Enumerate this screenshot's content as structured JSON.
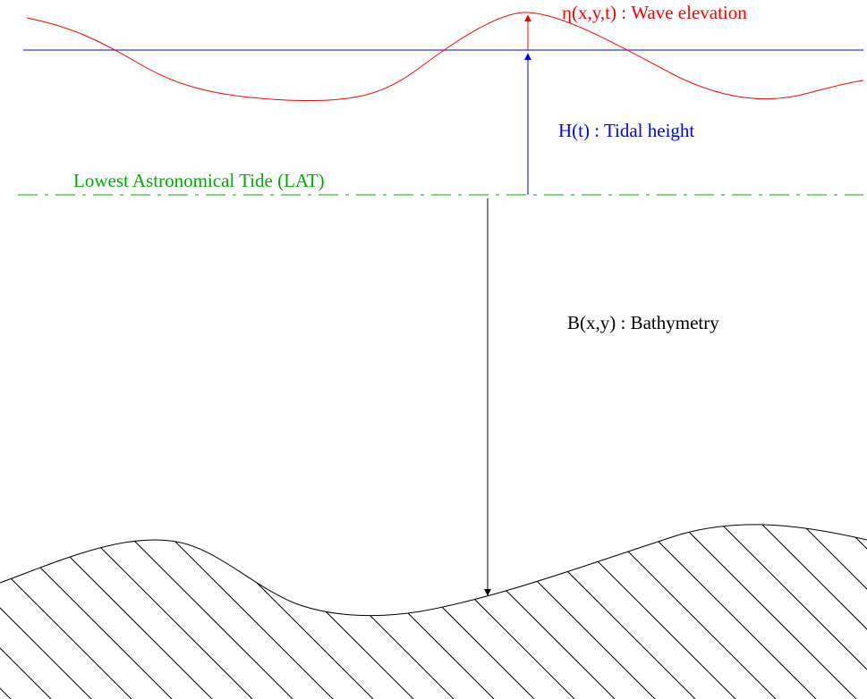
{
  "labels": {
    "wave_elevation": "η(x,y,t) : Wave elevation",
    "tidal_height": "H(t) : Tidal height",
    "lat": "Lowest Astronomical Tide (LAT)",
    "bathymetry": "B(x,y) : Bathymetry"
  },
  "colors": {
    "wave": "#ff0000",
    "tide": "#0000ff",
    "lat": "#00aa00",
    "seabed": "#000000"
  }
}
